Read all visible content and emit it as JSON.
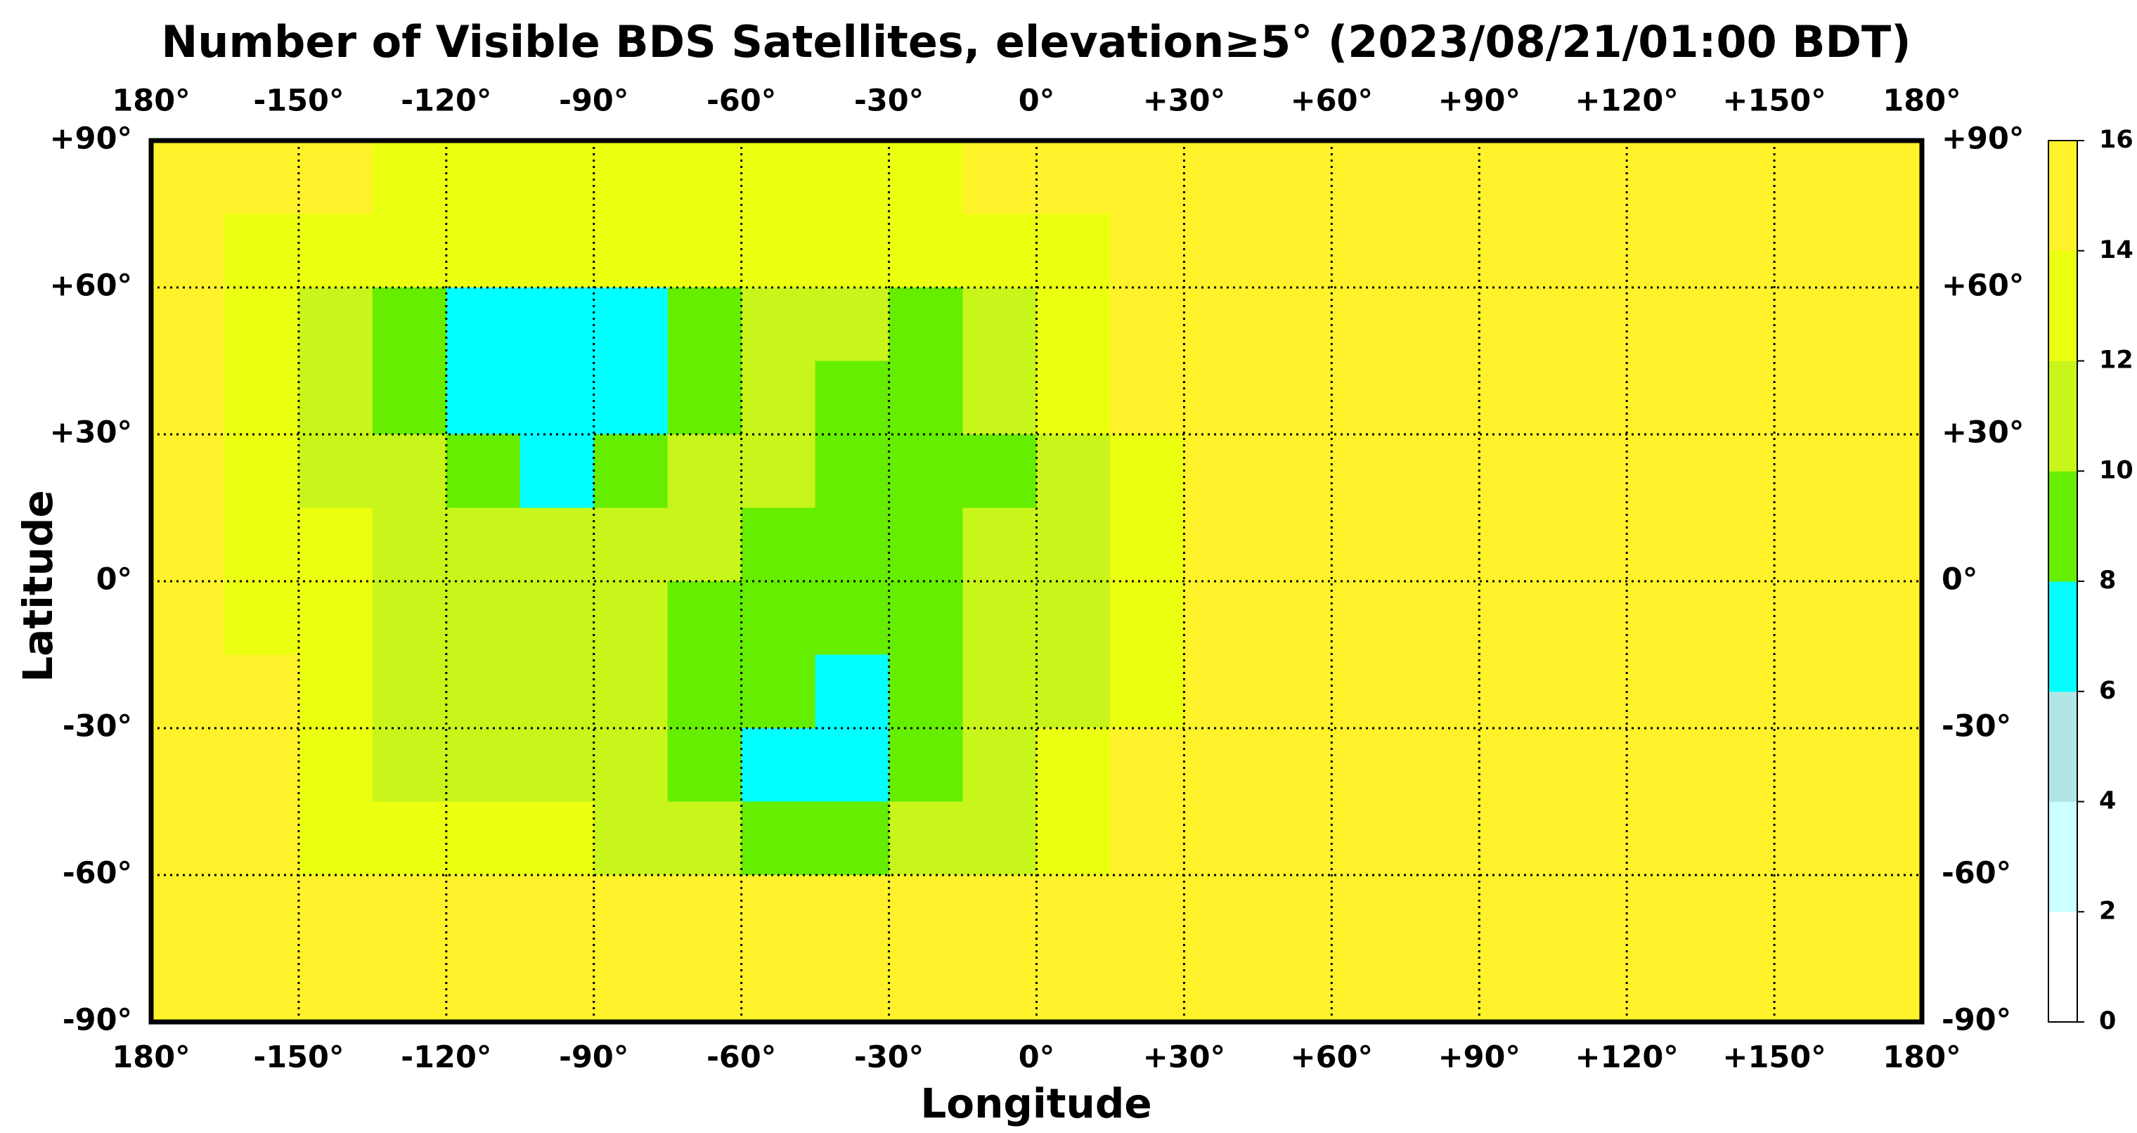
{
  "chart_data": {
    "type": "heatmap",
    "title": "Number of Visible BDS Satellites, elevation≥5° (2023/08/21/01:00 BDT)",
    "xlabel": "Longitude",
    "ylabel": "Latitude",
    "xlim": [
      -180,
      180
    ],
    "ylim": [
      -90,
      90
    ],
    "xticks": [
      {
        "value": -180,
        "label": "180°"
      },
      {
        "value": -150,
        "label": "-150°"
      },
      {
        "value": -120,
        "label": "-120°"
      },
      {
        "value": -90,
        "label": "-90°"
      },
      {
        "value": -60,
        "label": "-60°"
      },
      {
        "value": -30,
        "label": "-30°"
      },
      {
        "value": 0,
        "label": "0°"
      },
      {
        "value": 30,
        "label": "+30°"
      },
      {
        "value": 60,
        "label": "+60°"
      },
      {
        "value": 90,
        "label": "+90°"
      },
      {
        "value": 120,
        "label": "+120°"
      },
      {
        "value": 150,
        "label": "+150°"
      },
      {
        "value": 180,
        "label": "180°"
      }
    ],
    "yticks": [
      {
        "value": 90,
        "label": "+90°"
      },
      {
        "value": 60,
        "label": "+60°"
      },
      {
        "value": 30,
        "label": "+30°"
      },
      {
        "value": 0,
        "label": "0°"
      },
      {
        "value": -30,
        "label": "-30°"
      },
      {
        "value": -60,
        "label": "-60°"
      },
      {
        "value": -90,
        "label": "-90°"
      }
    ],
    "grid": true,
    "colorbar": {
      "levels": [
        0,
        2,
        4,
        6,
        8,
        10,
        12,
        14,
        16
      ],
      "colors": [
        "#ffffff",
        "#ccffff",
        "#b0e6e6",
        "#00ffff",
        "#66ee00",
        "#c8f51a",
        "#ebff10",
        "#fff22a"
      ]
    },
    "values": [
      [
        15,
        15,
        15,
        13,
        13,
        13,
        13,
        13,
        13,
        13,
        13,
        15,
        15,
        15,
        15,
        15,
        15,
        15,
        15,
        15,
        15,
        15,
        15,
        15
      ],
      [
        15,
        13,
        13,
        13,
        13,
        13,
        13,
        13,
        13,
        13,
        13,
        13,
        13,
        15,
        15,
        15,
        15,
        15,
        15,
        15,
        15,
        15,
        15,
        15
      ],
      [
        15,
        13,
        11,
        9,
        7,
        7,
        7,
        9,
        11,
        11,
        9,
        11,
        13,
        15,
        15,
        15,
        15,
        15,
        15,
        15,
        15,
        15,
        15,
        15
      ],
      [
        15,
        13,
        11,
        9,
        7,
        7,
        7,
        9,
        11,
        9,
        9,
        11,
        13,
        15,
        15,
        15,
        15,
        15,
        15,
        15,
        15,
        15,
        15,
        15
      ],
      [
        15,
        13,
        11,
        11,
        9,
        7,
        9,
        11,
        11,
        9,
        9,
        9,
        11,
        13,
        15,
        15,
        15,
        15,
        15,
        15,
        15,
        15,
        15,
        15
      ],
      [
        15,
        13,
        13,
        11,
        11,
        11,
        11,
        11,
        9,
        9,
        9,
        11,
        11,
        13,
        15,
        15,
        15,
        15,
        15,
        15,
        15,
        15,
        15,
        15
      ],
      [
        15,
        13,
        13,
        11,
        11,
        11,
        11,
        9,
        9,
        9,
        9,
        11,
        11,
        13,
        15,
        15,
        15,
        15,
        15,
        15,
        15,
        15,
        15,
        15
      ],
      [
        15,
        15,
        13,
        11,
        11,
        11,
        11,
        9,
        9,
        7,
        9,
        11,
        11,
        13,
        15,
        15,
        15,
        15,
        15,
        15,
        15,
        15,
        15,
        15
      ],
      [
        15,
        15,
        13,
        11,
        11,
        11,
        11,
        9,
        7,
        7,
        9,
        11,
        13,
        15,
        15,
        15,
        15,
        15,
        15,
        15,
        15,
        15,
        15,
        15
      ],
      [
        15,
        15,
        13,
        13,
        13,
        13,
        11,
        11,
        9,
        9,
        11,
        11,
        13,
        15,
        15,
        15,
        15,
        15,
        15,
        15,
        15,
        15,
        15,
        15
      ],
      [
        15,
        15,
        15,
        15,
        15,
        15,
        15,
        15,
        15,
        15,
        15,
        15,
        15,
        15,
        15,
        15,
        15,
        15,
        15,
        15,
        15,
        15,
        15,
        15
      ],
      [
        15,
        15,
        15,
        15,
        15,
        15,
        15,
        15,
        15,
        15,
        15,
        15,
        15,
        15,
        15,
        15,
        15,
        15,
        15,
        15,
        15,
        15,
        15,
        15
      ]
    ]
  }
}
